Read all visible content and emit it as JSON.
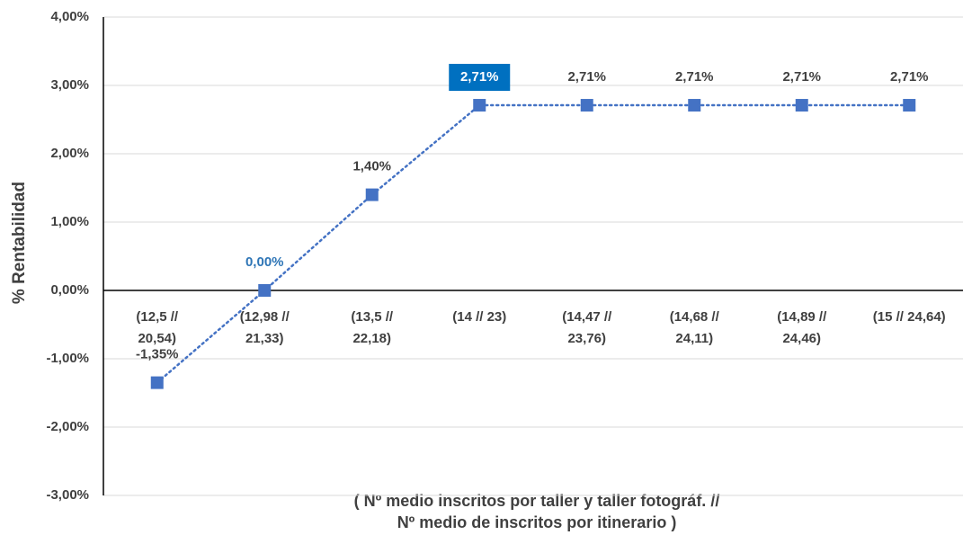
{
  "chart_data": {
    "type": "line",
    "y_label": "% Rentabilidad",
    "x_label": [
      "( Nº medio inscritos por taller y taller fotográf. //",
      "Nº medio de inscritos por itinerario )"
    ],
    "categories": [
      "(12,5 // 20,54)",
      "(12,98 // 21,33)",
      "(13,5 // 22,18)",
      "(14 // 23)",
      "(14,47 // 23,76)",
      "(14,68 // 24,11)",
      "(14,89 // 24,46)",
      "(15 // 24,64)"
    ],
    "series": [
      {
        "name": "% Rentabilidad",
        "color": "#4472c4",
        "values": [
          -1.35,
          0,
          1.4,
          2.71,
          2.71,
          2.71,
          2.71,
          2.71
        ],
        "value_labels": [
          "-1,35%",
          "0,00%",
          "1,40%",
          "2,71%",
          "2,71%",
          "2,71%",
          "2,71%",
          "2,71%"
        ]
      }
    ],
    "ylim": [
      -3,
      4
    ],
    "yticks": [
      {
        "value": -3,
        "label": "-3,00%"
      },
      {
        "value": -2,
        "label": "-2,00%"
      },
      {
        "value": -1,
        "label": "-1,00%"
      },
      {
        "value": 0,
        "label": "0,00%"
      },
      {
        "value": 1,
        "label": "1,00%"
      },
      {
        "value": 2,
        "label": "2,00%"
      },
      {
        "value": 3,
        "label": "3,00%"
      },
      {
        "value": 4,
        "label": "4,00%"
      }
    ],
    "grid": true
  }
}
